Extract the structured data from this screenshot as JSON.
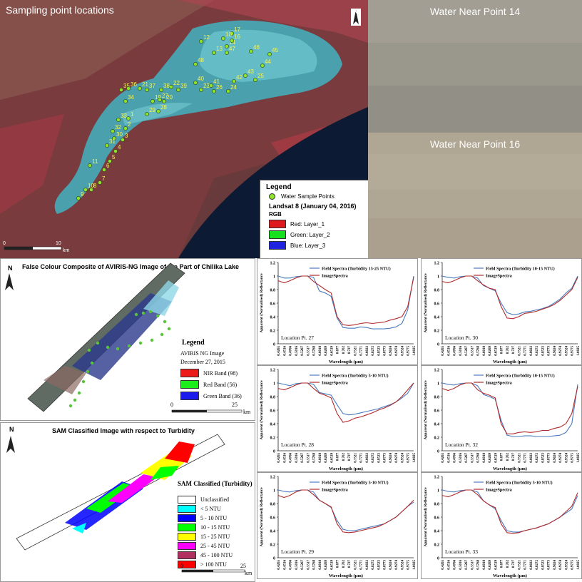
{
  "satellite": {
    "title": "Sampling point locations",
    "north": "N",
    "scale_ticks": [
      "0",
      "10"
    ],
    "scale_unit": "km",
    "points": [
      {
        "id": "1"
      },
      {
        "id": "2"
      },
      {
        "id": "3"
      },
      {
        "id": "4"
      },
      {
        "id": "5"
      },
      {
        "id": "6"
      },
      {
        "id": "7"
      },
      {
        "id": "8"
      },
      {
        "id": "9"
      },
      {
        "id": "10"
      },
      {
        "id": "11"
      },
      {
        "id": "12"
      },
      {
        "id": "13"
      },
      {
        "id": "14"
      },
      {
        "id": "16"
      },
      {
        "id": "17"
      },
      {
        "id": "18"
      },
      {
        "id": "19"
      },
      {
        "id": "20"
      },
      {
        "id": "21"
      },
      {
        "id": "22"
      },
      {
        "id": "23"
      },
      {
        "id": "24"
      },
      {
        "id": "25"
      },
      {
        "id": "26"
      },
      {
        "id": "27"
      },
      {
        "id": "28"
      },
      {
        "id": "29"
      },
      {
        "id": "30"
      },
      {
        "id": "31"
      },
      {
        "id": "32"
      },
      {
        "id": "33"
      },
      {
        "id": "34"
      },
      {
        "id": "35"
      },
      {
        "id": "36"
      },
      {
        "id": "37"
      },
      {
        "id": "38"
      },
      {
        "id": "39"
      },
      {
        "id": "40"
      },
      {
        "id": "41"
      },
      {
        "id": "42"
      },
      {
        "id": "43"
      },
      {
        "id": "44"
      },
      {
        "id": "45"
      },
      {
        "id": "46"
      },
      {
        "id": "47"
      },
      {
        "id": "48"
      }
    ],
    "legend": {
      "title": "Legend",
      "points_label": "Water Sample Points",
      "image_label": "Landsat 8 (January 04, 2016)",
      "rgb": "RGB",
      "bands": [
        {
          "label": "Red:  Layer_1",
          "color": "#e0191f"
        },
        {
          "label": "Green: Layer_2",
          "color": "#19e01f"
        },
        {
          "label": "Blue:  Layer_3",
          "color": "#1f23e0"
        }
      ]
    }
  },
  "photos": [
    {
      "title": "Water Near Point 14"
    },
    {
      "title": "Water Near Point 16"
    }
  ],
  "aviris": {
    "title": "False Colour Composite of AVIRIS-NG Image of the Part of Chilika Lake",
    "north": "N",
    "legend_title": "Legend",
    "image": "AVIRIS NG Image",
    "date": "December 27, 2015",
    "bands": [
      {
        "label": "NIR Band (98)",
        "color": "#ee1b1b"
      },
      {
        "label": "Red Band (56)",
        "color": "#1bee1b"
      },
      {
        "label": "Green Band (36)",
        "color": "#1b1bee"
      }
    ],
    "scale_ticks": [
      "0",
      "25"
    ],
    "scale_unit": "km"
  },
  "sam": {
    "title": "SAM Classified Image with respect to Turbidity",
    "north": "N",
    "legend_title": "SAM Classified (Turbidity)",
    "classes": [
      {
        "label": "Unclassified",
        "color": "#ffffff"
      },
      {
        "label": "< 5 NTU",
        "color": "#00ffff"
      },
      {
        "label": "5 - 10 NTU",
        "color": "#0000ff"
      },
      {
        "label": "10 - 15 NTU",
        "color": "#00ff00"
      },
      {
        "label": "15 - 25 NTU",
        "color": "#ffff00"
      },
      {
        "label": "25 - 45 NTU",
        "color": "#ff00ff"
      },
      {
        "label": "45 - 100 NTU",
        "color": "#b03060"
      },
      {
        "label": "> 100 NTU",
        "color": "#ff0000"
      }
    ],
    "scale_ticks": [
      "0",
      "25"
    ],
    "scale_unit": "km"
  },
  "chart_data": [
    {
      "type": "line",
      "location": "Location Pt. 27",
      "ylabel": "Apparent (Normalised) Reflectance",
      "xlabel": "Wavelength (μm)",
      "ylim": [
        0,
        1.2
      ],
      "yticks": [
        "0",
        "0.2",
        "0.4",
        "0.6",
        "0.8",
        "1",
        "1.2"
      ],
      "x": [
        "0.4265",
        "0.4516",
        "0.4766",
        "0.5016",
        "0.5267",
        "0.5517",
        "0.5768",
        "0.6018",
        "0.6269",
        "0.6519",
        "0.677",
        "0.702",
        "0.727",
        "0.7521",
        "0.7771",
        "0.8022",
        "0.8272",
        "0.8523",
        "0.8773",
        "0.9024",
        "0.9274",
        "0.9524",
        "0.9775",
        "1.0025"
      ],
      "series": [
        {
          "name": "Field Spectra (Turbidity 15-25 NTU)",
          "color": "#4a7bbf",
          "values": [
            1.0,
            0.97,
            0.97,
            0.99,
            1.0,
            1.0,
            0.98,
            0.78,
            0.75,
            0.7,
            0.38,
            0.24,
            0.23,
            0.23,
            0.25,
            0.24,
            0.22,
            0.22,
            0.22,
            0.23,
            0.25,
            0.3,
            0.5,
            1.0
          ]
        },
        {
          "name": "ImageSpectra",
          "color": "#b02a2a",
          "values": [
            0.93,
            0.9,
            0.93,
            0.97,
            1.0,
            1.0,
            0.92,
            0.86,
            0.8,
            0.75,
            0.4,
            0.28,
            0.27,
            0.28,
            0.3,
            0.31,
            0.3,
            0.31,
            0.32,
            0.35,
            0.37,
            0.4,
            0.55,
            0.98
          ]
        }
      ]
    },
    {
      "type": "line",
      "location": "Location Pt. 30",
      "ylabel": "Apparent (Normalised) Reflectance",
      "xlabel": "Wavelength (μm)",
      "ylim": [
        0,
        1.2
      ],
      "yticks": [
        "0",
        "0.2",
        "0.4",
        "0.6",
        "0.8",
        "1",
        "1.2"
      ],
      "x": [
        "0.4265",
        "0.4516",
        "0.4766",
        "0.5016",
        "0.5267",
        "0.5517",
        "0.5768",
        "0.6018",
        "0.6269",
        "0.6519",
        "0.677",
        "0.702",
        "0.727",
        "0.7521",
        "0.7771",
        "0.8022",
        "0.8272",
        "0.8523",
        "0.8773",
        "0.9024",
        "0.9274",
        "0.9524",
        "0.9775",
        "1.0025"
      ],
      "series": [
        {
          "name": "Field Spectra (Turbidity 10-15 NTU)",
          "color": "#4a7bbf",
          "values": [
            1.0,
            0.98,
            0.97,
            0.99,
            1.0,
            1.0,
            0.97,
            0.86,
            0.82,
            0.78,
            0.6,
            0.46,
            0.43,
            0.44,
            0.47,
            0.48,
            0.5,
            0.52,
            0.55,
            0.6,
            0.66,
            0.75,
            0.82,
            1.0
          ]
        },
        {
          "name": "ImageSpectra",
          "color": "#b02a2a",
          "values": [
            0.92,
            0.9,
            0.93,
            0.97,
            1.0,
            1.0,
            0.93,
            0.87,
            0.82,
            0.8,
            0.55,
            0.38,
            0.37,
            0.4,
            0.45,
            0.46,
            0.48,
            0.51,
            0.54,
            0.58,
            0.64,
            0.72,
            0.8,
            0.98
          ]
        }
      ]
    },
    {
      "type": "line",
      "location": "Location Pt. 28",
      "ylabel": "Apparent (Normalised) Reflectance",
      "xlabel": "Wavelength (μm)",
      "ylim": [
        0,
        1.2
      ],
      "yticks": [
        "0",
        "0.2",
        "0.4",
        "0.6",
        "0.8",
        "1",
        "1.2"
      ],
      "x": [
        "0.4265",
        "0.4516",
        "0.4766",
        "0.5016",
        "0.5267",
        "0.5517",
        "0.5768",
        "0.6018",
        "0.6269",
        "0.6519",
        "0.677",
        "0.702",
        "0.727",
        "0.7521",
        "0.7771",
        "0.8022",
        "0.8272",
        "0.8523",
        "0.8773",
        "0.9024",
        "0.9274",
        "0.9524",
        "0.9775",
        "1.0025"
      ],
      "series": [
        {
          "name": "Field Spectra (Turbidity 5-10 NTU)",
          "color": "#4a7bbf",
          "values": [
            1.0,
            0.98,
            0.96,
            0.99,
            1.0,
            1.0,
            0.98,
            0.86,
            0.84,
            0.82,
            0.68,
            0.55,
            0.53,
            0.54,
            0.56,
            0.58,
            0.6,
            0.62,
            0.65,
            0.68,
            0.72,
            0.78,
            0.85,
            1.0
          ]
        },
        {
          "name": "ImageSpectra",
          "color": "#b02a2a",
          "values": [
            0.92,
            0.9,
            0.93,
            0.97,
            1.0,
            1.0,
            0.92,
            0.85,
            0.82,
            0.78,
            0.55,
            0.42,
            0.44,
            0.48,
            0.5,
            0.53,
            0.56,
            0.6,
            0.63,
            0.67,
            0.72,
            0.8,
            0.9,
            1.0
          ]
        }
      ]
    },
    {
      "type": "line",
      "location": "Location Pt. 32",
      "ylabel": "Apparent (Normalised) Reflectance",
      "xlabel": "Wavelength (μm)",
      "ylim": [
        0,
        1.2
      ],
      "yticks": [
        "0",
        "0.2",
        "0.4",
        "0.6",
        "0.8",
        "1",
        "1.2"
      ],
      "x": [
        "0.4265",
        "0.4516",
        "0.4766",
        "0.5016",
        "0.5267",
        "0.5517",
        "0.5768",
        "0.6018",
        "0.6269",
        "0.6519",
        "0.677",
        "0.702",
        "0.727",
        "0.7521",
        "0.7771",
        "0.8022",
        "0.8272",
        "0.8523",
        "0.8773",
        "0.9024",
        "0.9274",
        "0.9524",
        "0.9775",
        "1.0025"
      ],
      "series": [
        {
          "name": "Field Spectra (Turbidity 10-15 NTU)",
          "color": "#4a7bbf",
          "values": [
            1.0,
            0.98,
            0.97,
            0.99,
            1.0,
            1.0,
            0.96,
            0.83,
            0.8,
            0.76,
            0.45,
            0.23,
            0.21,
            0.21,
            0.22,
            0.22,
            0.21,
            0.21,
            0.21,
            0.22,
            0.23,
            0.27,
            0.4,
            0.98
          ]
        },
        {
          "name": "ImageSpectra",
          "color": "#b02a2a",
          "values": [
            0.92,
            0.89,
            0.92,
            0.97,
            1.0,
            1.0,
            0.9,
            0.85,
            0.82,
            0.78,
            0.4,
            0.25,
            0.25,
            0.27,
            0.28,
            0.27,
            0.28,
            0.3,
            0.3,
            0.33,
            0.35,
            0.4,
            0.55,
            0.95
          ]
        }
      ]
    },
    {
      "type": "line",
      "location": "Location Pt. 29",
      "ylabel": "Apparent (Normalised) Reflectance",
      "xlabel": "Wavelength (μm)",
      "ylim": [
        0,
        1.2
      ],
      "yticks": [
        "0",
        "0.2",
        "0.4",
        "0.6",
        "0.8",
        "1",
        "1.2"
      ],
      "x": [
        "0.4265",
        "0.4516",
        "0.4766",
        "0.5016",
        "0.5267",
        "0.5517",
        "0.5768",
        "0.6018",
        "0.6269",
        "0.6519",
        "0.677",
        "0.702",
        "0.727",
        "0.7521",
        "0.7771",
        "0.8022",
        "0.8272",
        "0.8523",
        "0.8773",
        "0.9024",
        "0.9274",
        "0.9524",
        "0.9775",
        "1.0025"
      ],
      "series": [
        {
          "name": "Field Spectra (Turbidity 5-10 NTU)",
          "color": "#4a7bbf",
          "values": [
            1.0,
            0.98,
            0.97,
            0.99,
            1.0,
            1.0,
            0.97,
            0.85,
            0.8,
            0.74,
            0.55,
            0.42,
            0.4,
            0.4,
            0.42,
            0.44,
            0.46,
            0.48,
            0.5,
            0.55,
            0.6,
            0.68,
            0.76,
            0.82
          ]
        },
        {
          "name": "ImageSpectra",
          "color": "#b02a2a",
          "values": [
            0.92,
            0.89,
            0.92,
            0.97,
            1.0,
            1.0,
            0.93,
            0.85,
            0.8,
            0.75,
            0.5,
            0.38,
            0.37,
            0.38,
            0.4,
            0.42,
            0.44,
            0.46,
            0.5,
            0.55,
            0.6,
            0.68,
            0.76,
            0.85
          ]
        }
      ]
    },
    {
      "type": "line",
      "location": "Location Pt. 33",
      "ylabel": "Apparent (Normalised) Reflectance",
      "xlabel": "Wavelength (μm)",
      "ylim": [
        0,
        1.2
      ],
      "yticks": [
        "0",
        "0.2",
        "0.4",
        "0.6",
        "0.8",
        "1",
        "1.2"
      ],
      "x": [
        "0.4265",
        "0.4516",
        "0.4766",
        "0.5016",
        "0.5267",
        "0.5517",
        "0.5768",
        "0.6018",
        "0.6269",
        "0.6519",
        "0.677",
        "0.702",
        "0.727",
        "0.7521",
        "0.7771",
        "0.8022",
        "0.8272",
        "0.8523",
        "0.8773",
        "0.9024",
        "0.9274",
        "0.9524",
        "0.9775",
        "1.0025"
      ],
      "series": [
        {
          "name": "Field Spectra (Turbidity 5-10 NTU)",
          "color": "#4a7bbf",
          "values": [
            1.0,
            0.98,
            0.97,
            0.99,
            1.0,
            1.0,
            0.97,
            0.84,
            0.78,
            0.72,
            0.55,
            0.4,
            0.38,
            0.38,
            0.4,
            0.42,
            0.44,
            0.47,
            0.5,
            0.55,
            0.6,
            0.66,
            0.72,
            0.92
          ]
        },
        {
          "name": "ImageSpectra",
          "color": "#b02a2a",
          "values": [
            0.92,
            0.9,
            0.93,
            0.97,
            1.0,
            1.0,
            0.93,
            0.84,
            0.78,
            0.74,
            0.5,
            0.37,
            0.36,
            0.37,
            0.4,
            0.42,
            0.44,
            0.47,
            0.5,
            0.55,
            0.6,
            0.68,
            0.76,
            0.96
          ]
        }
      ]
    }
  ]
}
